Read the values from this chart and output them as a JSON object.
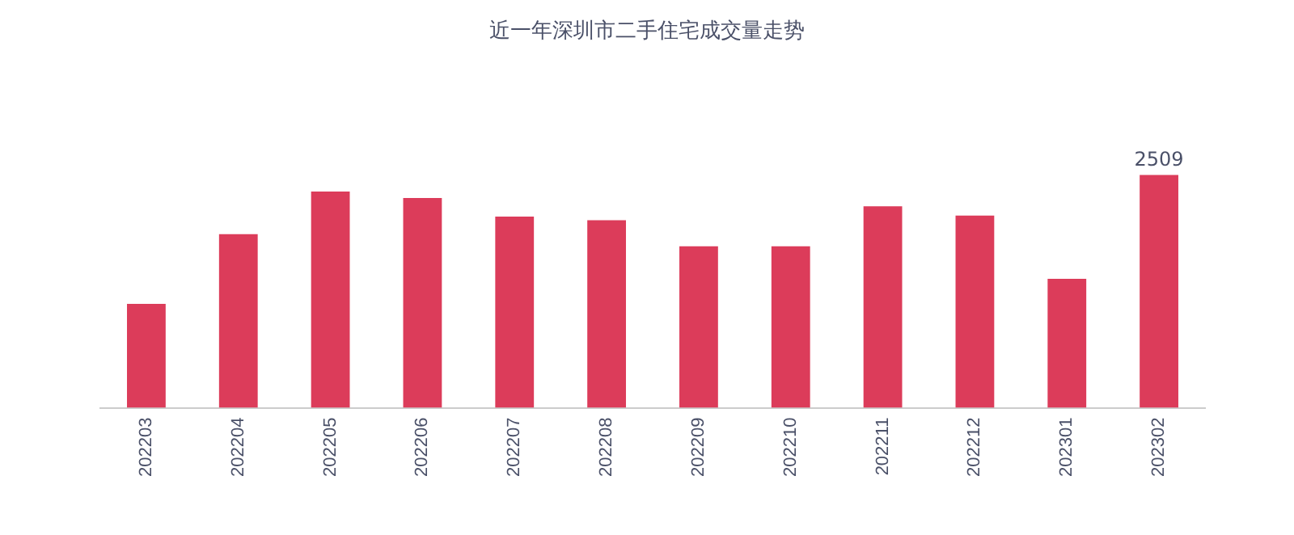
{
  "chart_data": {
    "type": "bar",
    "title": "近一年深圳市二手住宅成交量走势",
    "categories": [
      "202203",
      "202204",
      "202205",
      "202206",
      "202207",
      "202208",
      "202209",
      "202210",
      "202211",
      "202212",
      "202301",
      "202302"
    ],
    "values": [
      1120,
      1870,
      2330,
      2260,
      2060,
      2020,
      1740,
      1740,
      2170,
      2070,
      1390,
      2509
    ],
    "value_labels": [
      null,
      null,
      null,
      null,
      null,
      null,
      null,
      null,
      null,
      null,
      null,
      "2509"
    ],
    "tick_labels": "x",
    "color": "#dc3c5a",
    "grid": false,
    "legend": false
  }
}
